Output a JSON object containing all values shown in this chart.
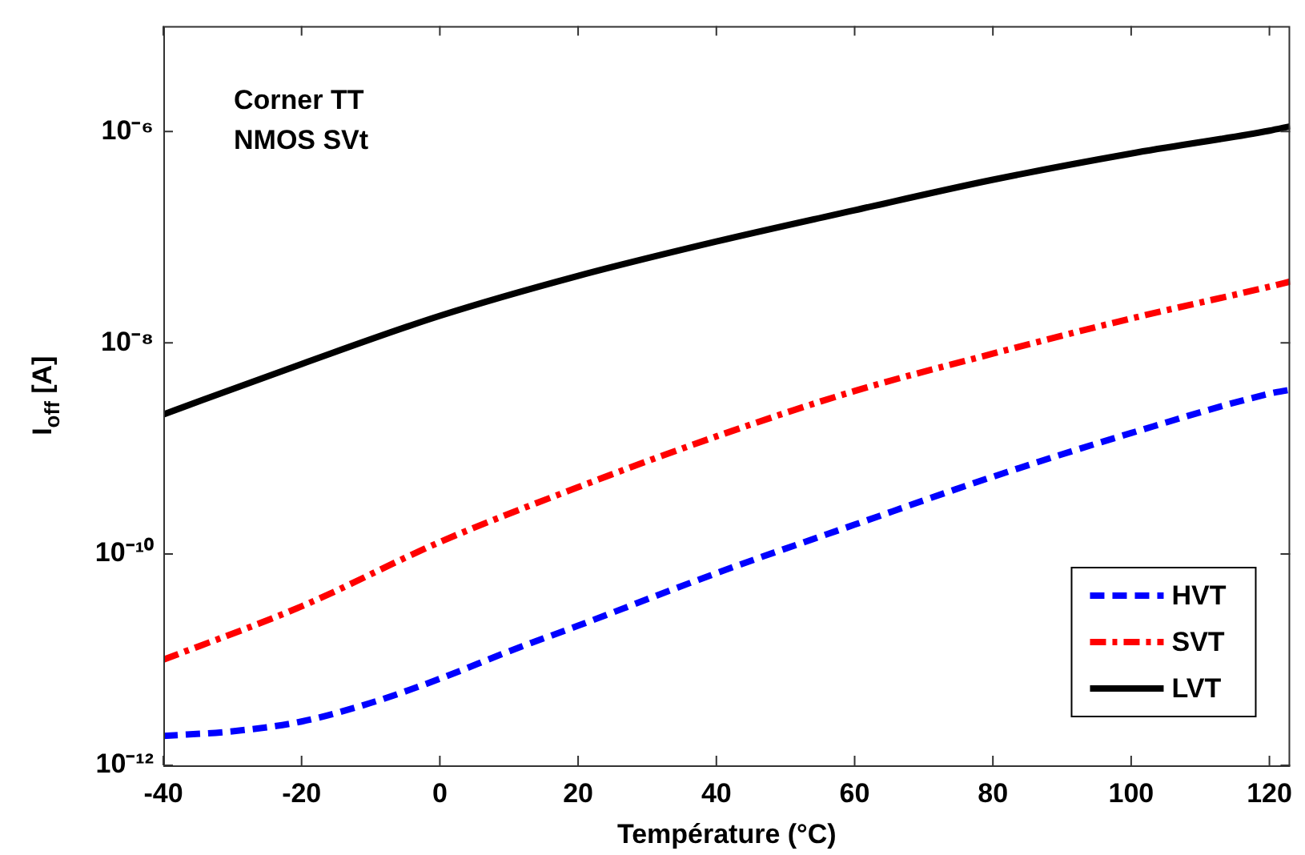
{
  "chart_data": {
    "type": "line",
    "xlabel": "Température (°C)",
    "ylabel": "I$_{off}$ [A]",
    "annotations": [
      "Corner TT",
      "NMOS SVt"
    ],
    "log": "y",
    "grid": false,
    "legend": "bottom right",
    "marker": "none",
    "xlim": [
      -40,
      123
    ],
    "xticks": [
      -40,
      -20,
      0,
      20,
      40,
      60,
      80,
      100,
      120
    ],
    "ylim": [
      1e-12,
      1e-05
    ],
    "yticks": [
      {
        "value": 1e-12,
        "label": "10⁻¹²"
      },
      {
        "value": 1e-10,
        "label": "10⁻¹⁰"
      },
      {
        "value": 1e-08,
        "label": "10⁻⁸"
      },
      {
        "value": 1e-06,
        "label": "10⁻⁶"
      }
    ],
    "series": [
      {
        "name": "HVT",
        "color": "#0000ff",
        "line_style": "dashed",
        "x": [
          -40,
          -30,
          -20,
          -10,
          0,
          10,
          20,
          40,
          60,
          80,
          100,
          120,
          123
        ],
        "values": [
          1.9e-12,
          2.1e-12,
          2.6e-12,
          3.9e-12,
          6.6e-12,
          1.2e-11,
          2.1e-11,
          6.6e-11,
          1.9e-10,
          5.4e-10,
          1.4e-09,
          3.3e-09,
          3.6e-09
        ]
      },
      {
        "name": "SVT",
        "color": "#ff0000",
        "line_style": "dashdot",
        "x": [
          -40,
          -20,
          0,
          20,
          40,
          60,
          80,
          100,
          120,
          123
        ],
        "values": [
          1e-11,
          3.2e-11,
          1.3e-10,
          4.3e-10,
          1.3e-09,
          3.5e-09,
          7.9e-09,
          1.7e-08,
          3.4e-08,
          3.8e-08
        ]
      },
      {
        "name": "LVT",
        "color": "#000000",
        "line_style": "solid",
        "x": [
          -40,
          -20,
          0,
          20,
          40,
          60,
          80,
          100,
          120,
          123
        ],
        "values": [
          2.1e-09,
          6.3e-09,
          1.8e-08,
          4.3e-08,
          9.1e-08,
          1.8e-07,
          3.5e-07,
          6.2e-07,
          1.02e-06,
          1.12e-06
        ]
      }
    ]
  }
}
